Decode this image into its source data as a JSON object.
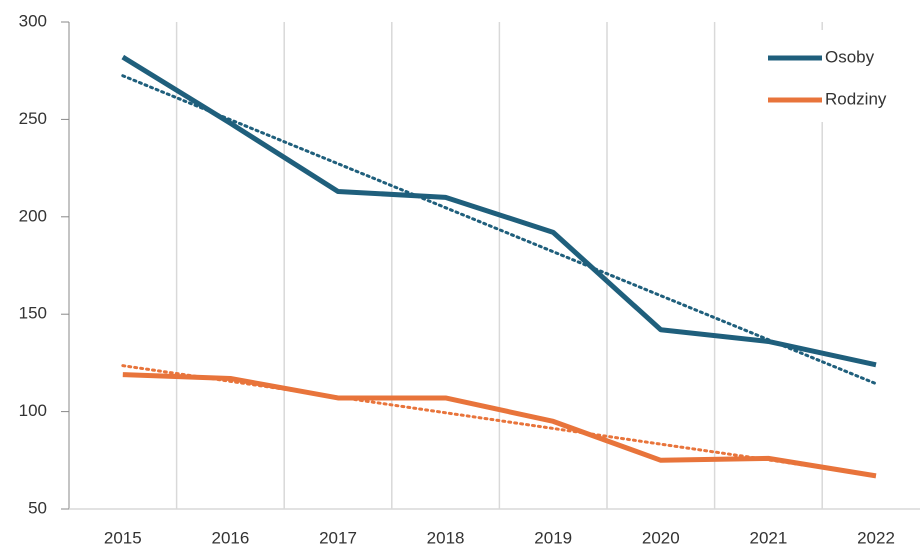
{
  "chart_data": {
    "type": "line",
    "categories": [
      "2015",
      "2016",
      "2017",
      "2018",
      "2019",
      "2020",
      "2021",
      "2022"
    ],
    "series": [
      {
        "name": "Osoby",
        "color": "#1f5f7c",
        "values": [
          282,
          248,
          213,
          210,
          192,
          142,
          136,
          124
        ]
      },
      {
        "name": "Rodziny",
        "color": "#e8743b",
        "values": [
          119,
          117,
          107,
          107,
          95,
          75,
          76,
          67
        ]
      }
    ],
    "ylim": [
      50,
      300
    ],
    "yticks": [
      50,
      100,
      150,
      200,
      250,
      300
    ],
    "grid": true,
    "trendline": true,
    "legend": "top-right"
  }
}
